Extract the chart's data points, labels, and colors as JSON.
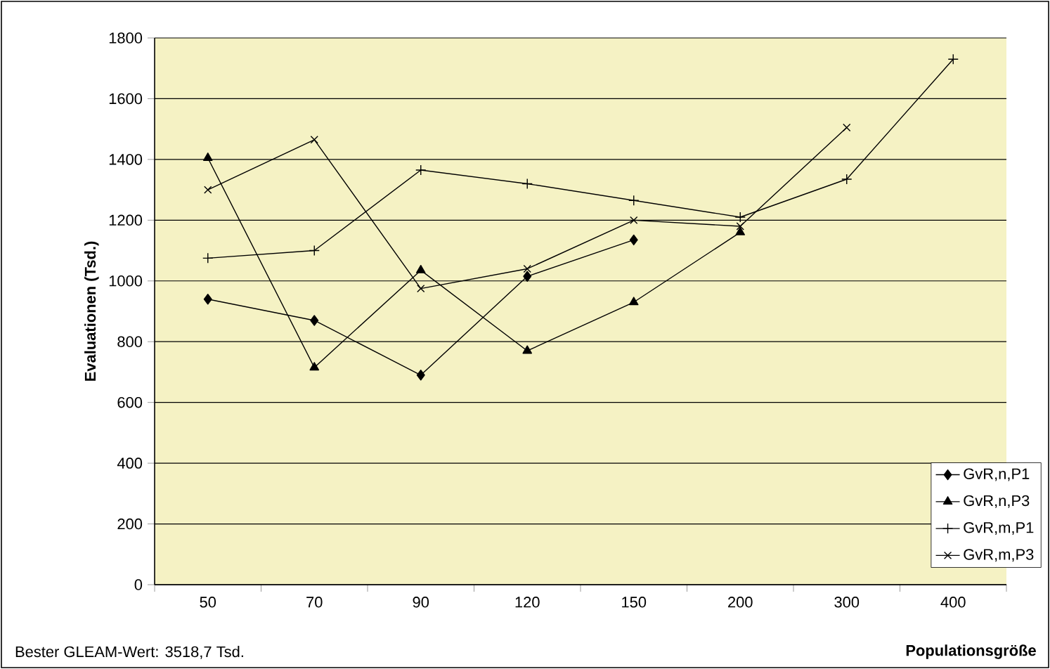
{
  "chart_data": {
    "type": "line",
    "xlabel": "Populationsgröße",
    "ylabel": "Evaluationen (Tsd.)",
    "annotations": [
      "Bester GLEAM-Wert: 3518,7 Tsd."
    ],
    "categories": [
      "50",
      "70",
      "90",
      "120",
      "150",
      "200",
      "300",
      "400"
    ],
    "series": [
      {
        "name": "GvR,n,P1",
        "color": "#000000",
        "marker": "diamond",
        "values": [
          940,
          870,
          690,
          1015,
          1135,
          null,
          null,
          null
        ]
      },
      {
        "name": "GvR,n,P3",
        "color": "#000000",
        "marker": "triangle",
        "values": [
          1405,
          715,
          1035,
          770,
          930,
          1160,
          null,
          null
        ]
      },
      {
        "name": "GvR,m,P1",
        "color": "#000000",
        "marker": "cross",
        "values": [
          1075,
          1100,
          1365,
          1320,
          1265,
          1210,
          1335,
          1730
        ]
      },
      {
        "name": "GvR,m,P3",
        "color": "#000000",
        "marker": "x",
        "values": [
          1300,
          1465,
          975,
          1040,
          1200,
          1180,
          1505,
          null
        ]
      }
    ],
    "ylim": [
      0,
      1800
    ],
    "yticks": [
      0,
      200,
      400,
      600,
      800,
      1000,
      1200,
      1400,
      1600,
      1800
    ],
    "grid": "y",
    "legend": "right",
    "line_style": "solid"
  }
}
